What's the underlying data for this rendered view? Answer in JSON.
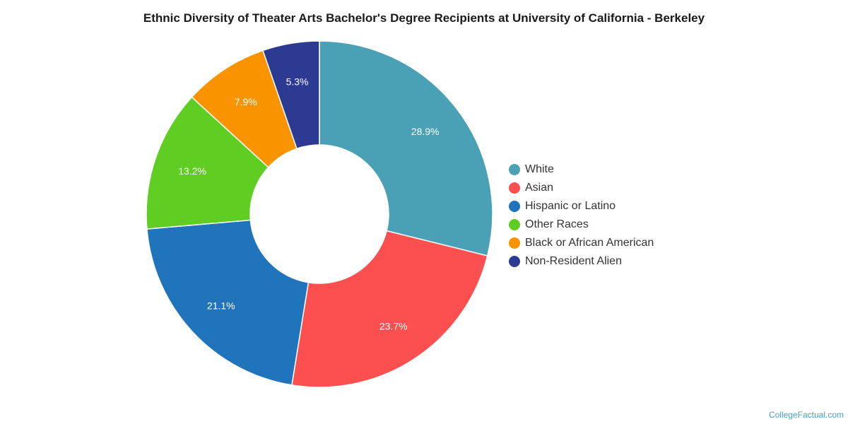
{
  "chart_data": {
    "type": "pie",
    "title": "Ethnic Diversity of Theater Arts Bachelor's Degree Recipients at University of California - Berkeley",
    "categories": [
      "White",
      "Asian",
      "Hispanic or Latino",
      "Other Races",
      "Black or African American",
      "Non-Resident Alien"
    ],
    "values": [
      28.9,
      23.7,
      21.1,
      13.2,
      7.9,
      5.3
    ],
    "value_labels": [
      "28.9%",
      "23.7%",
      "21.1%",
      "13.2%",
      "7.9%",
      "5.3%"
    ],
    "colors": [
      "#4aa0b5",
      "#fc5050",
      "#1f74bb",
      "#60cd23",
      "#f99300",
      "#2c3a92"
    ],
    "legend_position": "right",
    "donut": true
  },
  "watermark": "CollegeFactual.com"
}
